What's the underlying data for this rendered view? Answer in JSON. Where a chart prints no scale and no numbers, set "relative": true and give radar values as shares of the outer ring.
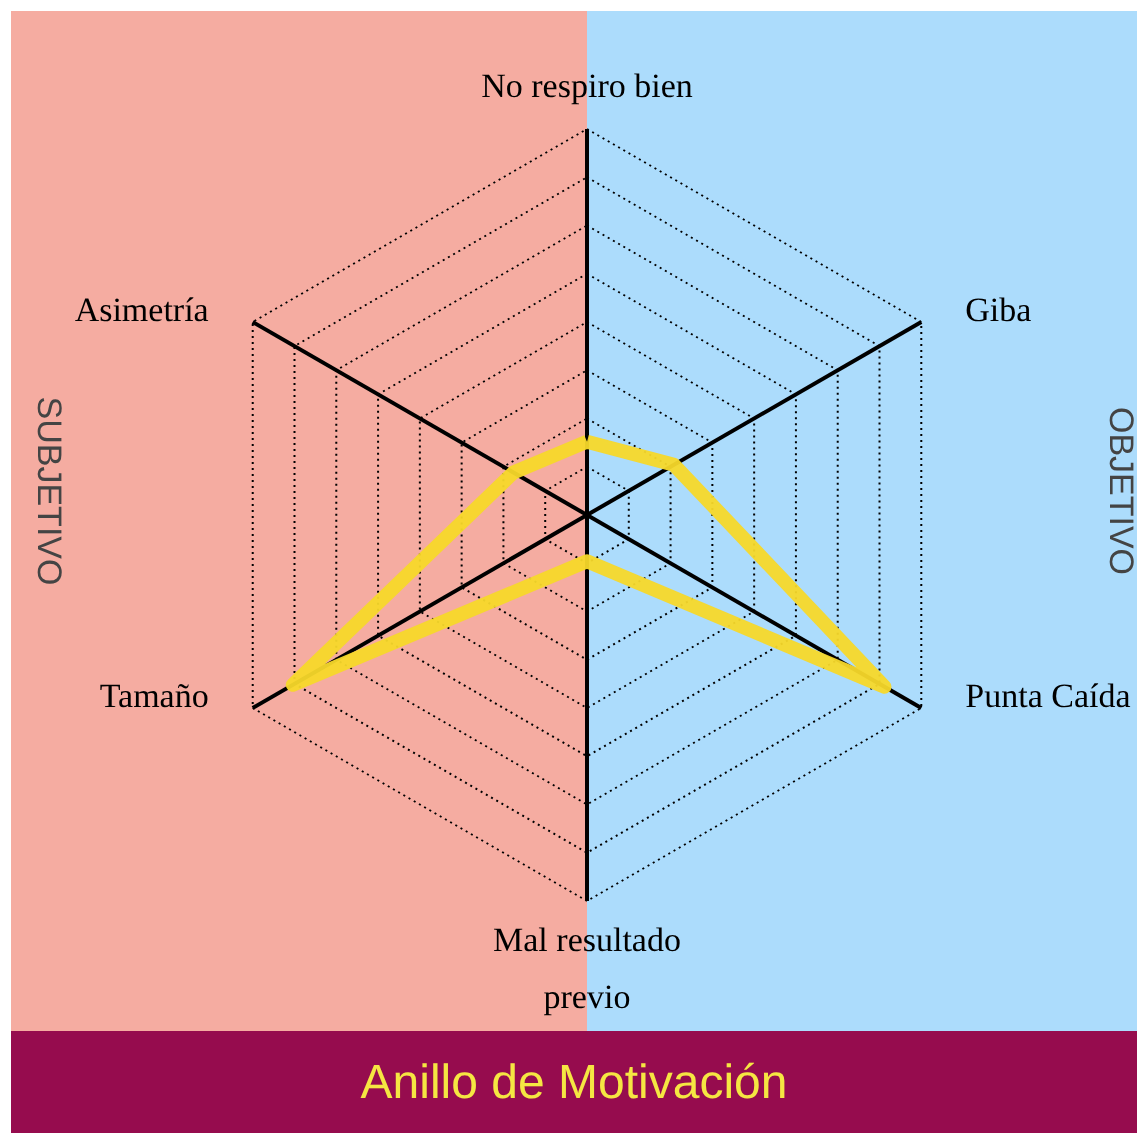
{
  "chart_data": {
    "type": "radar",
    "title": "Anillo de Motivación",
    "relative": true,
    "grid": true,
    "line_style": "solid",
    "marker": "none",
    "categories": [
      "No respiro bien",
      "Giba",
      "Punta Caída",
      "Mal resultado previo",
      "Tamaño",
      "Asimetría"
    ],
    "series": [
      {
        "color": "#f7d82a",
        "values": [
          0.19,
          0.26,
          0.89,
          0.12,
          0.88,
          0.22
        ]
      }
    ],
    "annotations": [
      "SUBJETIVO",
      "OBJETIVO"
    ]
  }
}
